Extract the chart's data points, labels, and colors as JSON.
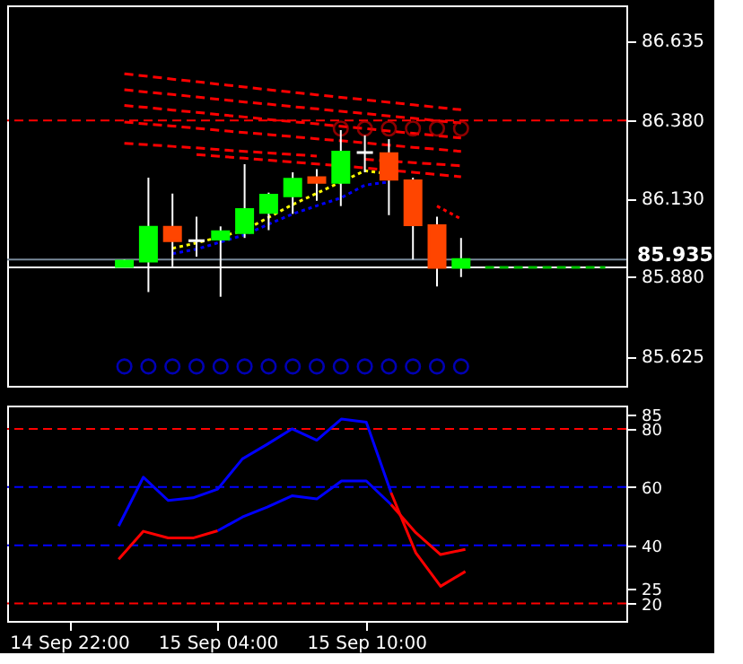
{
  "chart_data": [
    {
      "type": "candlestick",
      "categories": [
        null,
        null,
        null,
        null,
        null,
        null,
        null,
        null,
        null,
        null,
        null,
        null,
        null,
        null,
        null,
        null,
        null,
        null,
        null,
        null,
        null,
        null,
        null,
        null,
        null
      ],
      "ohlc": [
        null,
        null,
        null,
        null,
        [
          85.913,
          85.935,
          85.91,
          85.93
        ],
        [
          85.93,
          86.197,
          85.831,
          86.038
        ],
        [
          86.038,
          86.146,
          85.913,
          85.995
        ],
        [
          85.995,
          86.072,
          85.944,
          85.995
        ],
        [
          86.0,
          86.041,
          85.816,
          86.024
        ],
        [
          86.021,
          86.24,
          86.004,
          86.095
        ],
        [
          86.086,
          86.149,
          86.029,
          86.141
        ],
        [
          86.139,
          86.214,
          86.081,
          86.192
        ],
        [
          86.197,
          86.224,
          86.123,
          86.182
        ],
        [
          86.182,
          86.349,
          86.106,
          86.279
        ],
        [
          86.277,
          86.332,
          86.214,
          86.277
        ],
        [
          86.274,
          86.32,
          86.077,
          86.192
        ],
        [
          86.187,
          86.197,
          85.935,
          86.046
        ],
        [
          86.043,
          86.072,
          85.849,
          85.91
        ],
        [
          85.91,
          86.004,
          85.879,
          85.935
        ],
        null,
        null,
        null,
        null,
        null,
        null
      ],
      "colors": [
        null,
        null,
        null,
        null,
        "#00ff00",
        "#00ff00",
        "#ff4500",
        "#ffffff",
        "#00ff00",
        "#00ff00",
        "#00ff00",
        "#00ff00",
        "#ff4500",
        "#00ff00",
        "#ffffff",
        "#ff4500",
        "#ff4500",
        "#ff4500",
        "#00ff00",
        null,
        null,
        null,
        null,
        null,
        null
      ],
      "series": [
        {
          "type": "line",
          "color": "#ff0000",
          "line_style": "dashed",
          "values": [
            null,
            null,
            null,
            null,
            86.529,
            86.521,
            86.512,
            86.504,
            86.495,
            86.487,
            86.478,
            86.47,
            86.462,
            86.454,
            86.446,
            86.438,
            86.43,
            86.422,
            86.414,
            null,
            null,
            null,
            null,
            null,
            null
          ]
        },
        {
          "type": "line",
          "color": "#ff0000",
          "line_style": "dashed",
          "values": [
            null,
            null,
            null,
            null,
            86.478,
            86.47,
            86.463,
            86.455,
            86.447,
            86.439,
            86.432,
            86.424,
            86.417,
            86.409,
            86.402,
            86.394,
            86.387,
            86.379,
            86.372,
            null,
            null,
            null,
            null,
            null,
            null
          ]
        },
        {
          "type": "line",
          "color": "#ff0000",
          "line_style": "dashed",
          "values": [
            null,
            null,
            null,
            null,
            86.428,
            86.421,
            86.413,
            86.406,
            86.398,
            86.391,
            86.383,
            86.376,
            86.369,
            86.361,
            86.354,
            86.346,
            86.339,
            86.331,
            86.324,
            null,
            null,
            null,
            null,
            null,
            null
          ]
        },
        {
          "type": "line",
          "color": "#ff0000",
          "line_style": "dashed",
          "values": [
            null,
            null,
            null,
            null,
            86.375,
            86.368,
            86.362,
            86.355,
            86.348,
            86.341,
            86.335,
            86.328,
            86.321,
            86.315,
            86.308,
            86.301,
            86.294,
            86.288,
            86.281,
            null,
            null,
            null,
            null,
            null,
            null
          ]
        },
        {
          "type": "line",
          "color": "#ff0000",
          "line_style": "dashed",
          "values": [
            null,
            null,
            null,
            null,
            86.307,
            86.302,
            86.297,
            86.292,
            86.286,
            86.281,
            86.276,
            86.271,
            86.266,
            null,
            86.256,
            86.25,
            86.245,
            86.24,
            86.235,
            null,
            null,
            null,
            null,
            null,
            null
          ]
        },
        {
          "type": "line",
          "color": "#ff0000",
          "line_style": "dashed",
          "values": [
            null,
            null,
            null,
            null,
            null,
            null,
            null,
            86.271,
            86.265,
            86.259,
            86.253,
            86.247,
            86.241,
            86.235,
            86.228,
            86.221,
            86.214,
            86.207,
            86.2,
            null,
            null,
            null,
            null,
            null,
            null
          ]
        },
        {
          "type": "line",
          "color": "#ffff00",
          "line_style": "dotted",
          "values": [
            null,
            null,
            null,
            null,
            null,
            null,
            85.971,
            85.988,
            86.008,
            86.029,
            86.07,
            86.111,
            86.147,
            86.183,
            86.219,
            86.209,
            null,
            null,
            null,
            null,
            null,
            null,
            null,
            null,
            null
          ]
        },
        {
          "type": "line",
          "color": "#0000ff",
          "line_style": "dotted",
          "values": [
            null,
            null,
            null,
            null,
            null,
            null,
            85.954,
            85.968,
            85.991,
            86.014,
            86.048,
            86.081,
            86.107,
            86.132,
            86.173,
            86.183,
            null,
            null,
            null,
            null,
            null,
            null,
            null,
            null,
            null
          ]
        },
        {
          "type": "line",
          "color": "#ff0000",
          "line_style": "dotted",
          "values": [
            null,
            null,
            null,
            null,
            null,
            null,
            null,
            null,
            null,
            null,
            null,
            null,
            null,
            null,
            null,
            null,
            null,
            86.106,
            86.065,
            null,
            null,
            null,
            null,
            null,
            null
          ]
        },
        {
          "type": "line",
          "color": "#00c000",
          "line_style": "dashed",
          "values": [
            null,
            null,
            null,
            null,
            null,
            null,
            null,
            null,
            null,
            null,
            null,
            null,
            null,
            null,
            null,
            null,
            null,
            null,
            null,
            85.91,
            85.91,
            85.91,
            85.91,
            85.91,
            85.91
          ]
        },
        {
          "type": "scatter",
          "color": "#cc0000",
          "marker": "circle",
          "values": [
            null,
            null,
            null,
            null,
            null,
            null,
            null,
            null,
            null,
            null,
            null,
            null,
            null,
            86.354,
            86.354,
            86.354,
            86.354,
            86.354,
            86.354,
            null,
            null,
            null,
            null,
            null,
            null
          ]
        },
        {
          "type": "scatter",
          "color": "#0000ff",
          "marker": "circle",
          "values": [
            null,
            null,
            null,
            null,
            85.593,
            85.593,
            85.593,
            85.593,
            85.593,
            85.593,
            85.593,
            85.593,
            85.593,
            85.593,
            85.593,
            85.593,
            85.593,
            85.593,
            85.593,
            null,
            null,
            null,
            null,
            null,
            null
          ]
        }
      ],
      "ref_lines": [
        {
          "axis": "y",
          "value": 86.38,
          "color": "#ff0000",
          "line_style": "dashed"
        },
        {
          "axis": "y",
          "value": 85.935,
          "label": "85.935",
          "color": "#778899",
          "line_style": "solid"
        },
        {
          "axis": "y",
          "value": 85.91,
          "color": "#ffffff",
          "line_style": "solid"
        }
      ],
      "ylim": [
        85.531,
        86.748
      ],
      "yticks": [
        85.625,
        {
          "value": 85.88,
          "label": "85.880"
        },
        {
          "value": 86.13,
          "label": "86.130"
        },
        {
          "value": 86.38,
          "label": "86.380"
        },
        86.635
      ],
      "tick_labels": "y",
      "grid": false
    },
    {
      "type": "line",
      "categories": [
        null,
        null,
        "14 Sep 22:00",
        null,
        null,
        null,
        null,
        null,
        "15 Sep 04:00",
        null,
        null,
        null,
        null,
        null,
        "15 Sep 10:00",
        null,
        null,
        null,
        null,
        null,
        null,
        null,
        null,
        null,
        null
      ],
      "series": [
        {
          "color": "#0000ff",
          "values": [
            null,
            null,
            null,
            null,
            46.6,
            63.4,
            55.4,
            56.3,
            59.3,
            69.7,
            74.7,
            80,
            76.1,
            83.4,
            82.3,
            58.1,
            null,
            null,
            null,
            null,
            null,
            null,
            null,
            null,
            null
          ]
        },
        {
          "color": "#ff0000",
          "values": [
            null,
            null,
            null,
            null,
            null,
            null,
            null,
            null,
            null,
            null,
            null,
            null,
            null,
            null,
            null,
            58.1,
            37.4,
            25.9,
            31,
            null,
            null,
            null,
            null,
            null,
            null
          ]
        },
        {
          "color": "#ff0000",
          "values": [
            null,
            null,
            null,
            null,
            35.2,
            44.8,
            42.5,
            42.5,
            45,
            null,
            null,
            null,
            null,
            null,
            null,
            null,
            null,
            null,
            null,
            null,
            null,
            null,
            null,
            null,
            null
          ]
        },
        {
          "color": "#0000ff",
          "values": [
            null,
            null,
            null,
            null,
            null,
            null,
            null,
            null,
            45,
            49.7,
            53.1,
            57,
            55.9,
            62.1,
            62.1,
            54,
            null,
            null,
            null,
            null,
            null,
            null,
            null,
            null,
            null
          ]
        },
        {
          "color": "#ff0000",
          "values": [
            null,
            null,
            null,
            null,
            null,
            null,
            null,
            null,
            null,
            null,
            null,
            null,
            null,
            null,
            null,
            54,
            44.3,
            36.8,
            38.6,
            null,
            null,
            null,
            null,
            null,
            null
          ]
        }
      ],
      "ref_lines": [
        {
          "axis": "y",
          "value": 80,
          "color": "#ff0000",
          "line_style": "dashed"
        },
        {
          "axis": "y",
          "value": 60,
          "color": "#0000ff",
          "line_style": "dashed"
        },
        {
          "axis": "y",
          "value": 40,
          "color": "#0000ff",
          "line_style": "dashed"
        },
        {
          "axis": "y",
          "value": 20,
          "color": "#ff0000",
          "line_style": "dashed"
        }
      ],
      "ylim": [
        14,
        88
      ],
      "yticks": [
        20,
        25,
        40,
        60,
        80,
        85
      ],
      "grid": false
    }
  ]
}
